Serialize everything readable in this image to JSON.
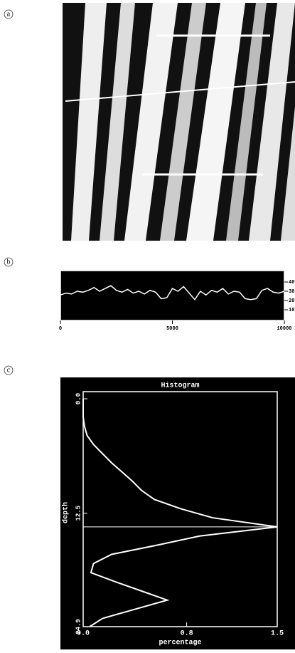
{
  "panel_labels": [
    "a",
    "b",
    "c"
  ],
  "chart_data": [
    {
      "type": "line",
      "x": [
        0,
        250,
        500,
        750,
        1000,
        1250,
        1500,
        1750,
        2000,
        2250,
        2500,
        2750,
        3000,
        3250,
        3500,
        3750,
        4000,
        4250,
        4500,
        4750,
        5000,
        5250,
        5500,
        5750,
        6000,
        6250,
        6500,
        6750,
        7000,
        7250,
        7500,
        7750,
        8000,
        8250,
        8500,
        8750,
        9000,
        9250,
        9500,
        9750,
        10000
      ],
      "series": [
        {
          "color": "#ffffff",
          "axis": "y2",
          "values": [
            26,
            28,
            27,
            30,
            29,
            31,
            34,
            30,
            33,
            36,
            31,
            29,
            32,
            28,
            30,
            27,
            31,
            29,
            22,
            23,
            33,
            30,
            35,
            28,
            21,
            30,
            26,
            31,
            29,
            33,
            27,
            30,
            29,
            22,
            21,
            22,
            31,
            33,
            29,
            28,
            30
          ]
        }
      ],
      "xlim": [
        0,
        10000
      ],
      "xticks": [
        0,
        5000,
        10000
      ],
      "y2lim": [
        0,
        50
      ],
      "y2ticks": [
        10,
        20,
        30,
        40
      ]
    },
    {
      "type": "profile",
      "title": "Histogram",
      "xlabel": "percentage",
      "ylabel": "depth",
      "x": [
        0,
        1,
        2,
        3,
        4,
        5,
        6,
        7,
        8,
        9,
        10,
        11,
        12,
        13,
        14,
        15,
        16,
        17,
        18,
        19,
        20,
        21,
        22,
        23,
        24,
        24.9
      ],
      "series": [
        {
          "color": "#ffffff",
          "values": [
            0,
            0,
            0,
            0.01,
            0.03,
            0.08,
            0.15,
            0.22,
            0.3,
            0.38,
            0.45,
            0.55,
            0.75,
            1.0,
            1.5,
            0.9,
            0.57,
            0.22,
            0.08,
            0.06,
            0.25,
            0.45,
            0.65,
            0.4,
            0.15,
            0.05
          ]
        }
      ],
      "xlim": [
        0,
        24.9
      ],
      "xticks": [
        {
          "value": 0,
          "label": "0.0"
        },
        12.5,
        24.9
      ],
      "ylim": [
        0,
        1.5
      ],
      "yticks": [
        {
          "value": 0,
          "label": "0.0"
        },
        0.8,
        1.5
      ]
    }
  ]
}
